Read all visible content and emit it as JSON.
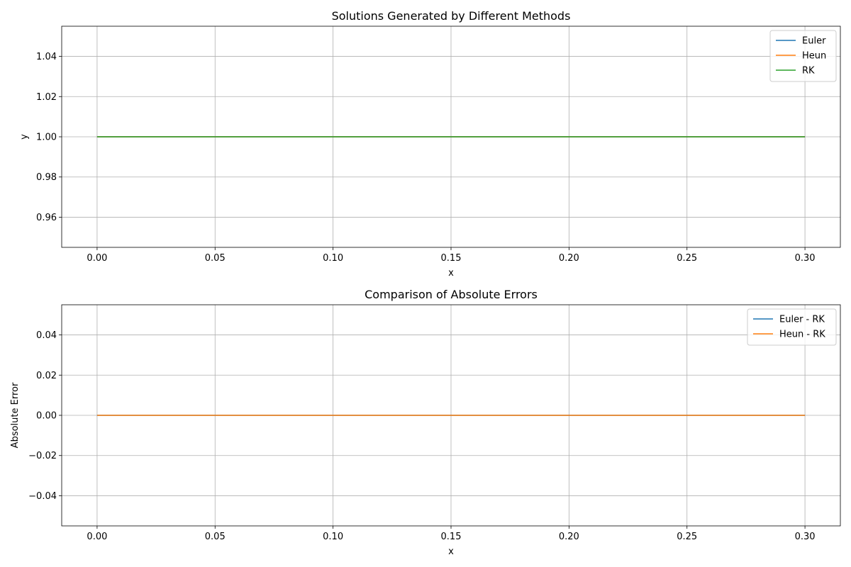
{
  "chart_data": [
    {
      "type": "line",
      "title": "Solutions Generated by Different Methods",
      "xlabel": "x",
      "ylabel": "y",
      "xlim": [
        -0.015,
        0.315
      ],
      "ylim": [
        0.945,
        1.055
      ],
      "xticks": [
        0.0,
        0.05,
        0.1,
        0.15,
        0.2,
        0.25,
        0.3
      ],
      "xtick_labels": [
        "0.00",
        "0.05",
        "0.10",
        "0.15",
        "0.20",
        "0.25",
        "0.30"
      ],
      "yticks": [
        0.96,
        0.98,
        1.0,
        1.02,
        1.04
      ],
      "ytick_labels": [
        "0.96",
        "0.98",
        "1.00",
        "1.02",
        "1.04"
      ],
      "grid": true,
      "legend_position": "upper right",
      "series": [
        {
          "name": "Euler",
          "color": "#1f77b4",
          "x": [
            0.0,
            0.3
          ],
          "y": [
            1.0,
            1.0
          ]
        },
        {
          "name": "Heun",
          "color": "#ff7f0e",
          "x": [
            0.0,
            0.3
          ],
          "y": [
            1.0,
            1.0
          ]
        },
        {
          "name": "RK",
          "color": "#2ca02c",
          "x": [
            0.0,
            0.3
          ],
          "y": [
            1.0,
            1.0
          ]
        }
      ]
    },
    {
      "type": "line",
      "title": "Comparison of Absolute Errors",
      "xlabel": "x",
      "ylabel": "Absolute Error",
      "xlim": [
        -0.015,
        0.315
      ],
      "ylim": [
        -0.055,
        0.055
      ],
      "xticks": [
        0.0,
        0.05,
        0.1,
        0.15,
        0.2,
        0.25,
        0.3
      ],
      "xtick_labels": [
        "0.00",
        "0.05",
        "0.10",
        "0.15",
        "0.20",
        "0.25",
        "0.30"
      ],
      "yticks": [
        -0.04,
        -0.02,
        0.0,
        0.02,
        0.04
      ],
      "ytick_labels": [
        "−0.04",
        "−0.02",
        "0.00",
        "0.02",
        "0.04"
      ],
      "grid": true,
      "legend_position": "upper right",
      "series": [
        {
          "name": "Euler - RK",
          "color": "#1f77b4",
          "x": [
            0.0,
            0.3
          ],
          "y": [
            0.0,
            0.0
          ]
        },
        {
          "name": "Heun - RK",
          "color": "#ff7f0e",
          "x": [
            0.0,
            0.3
          ],
          "y": [
            0.0,
            0.0
          ]
        }
      ]
    }
  ]
}
